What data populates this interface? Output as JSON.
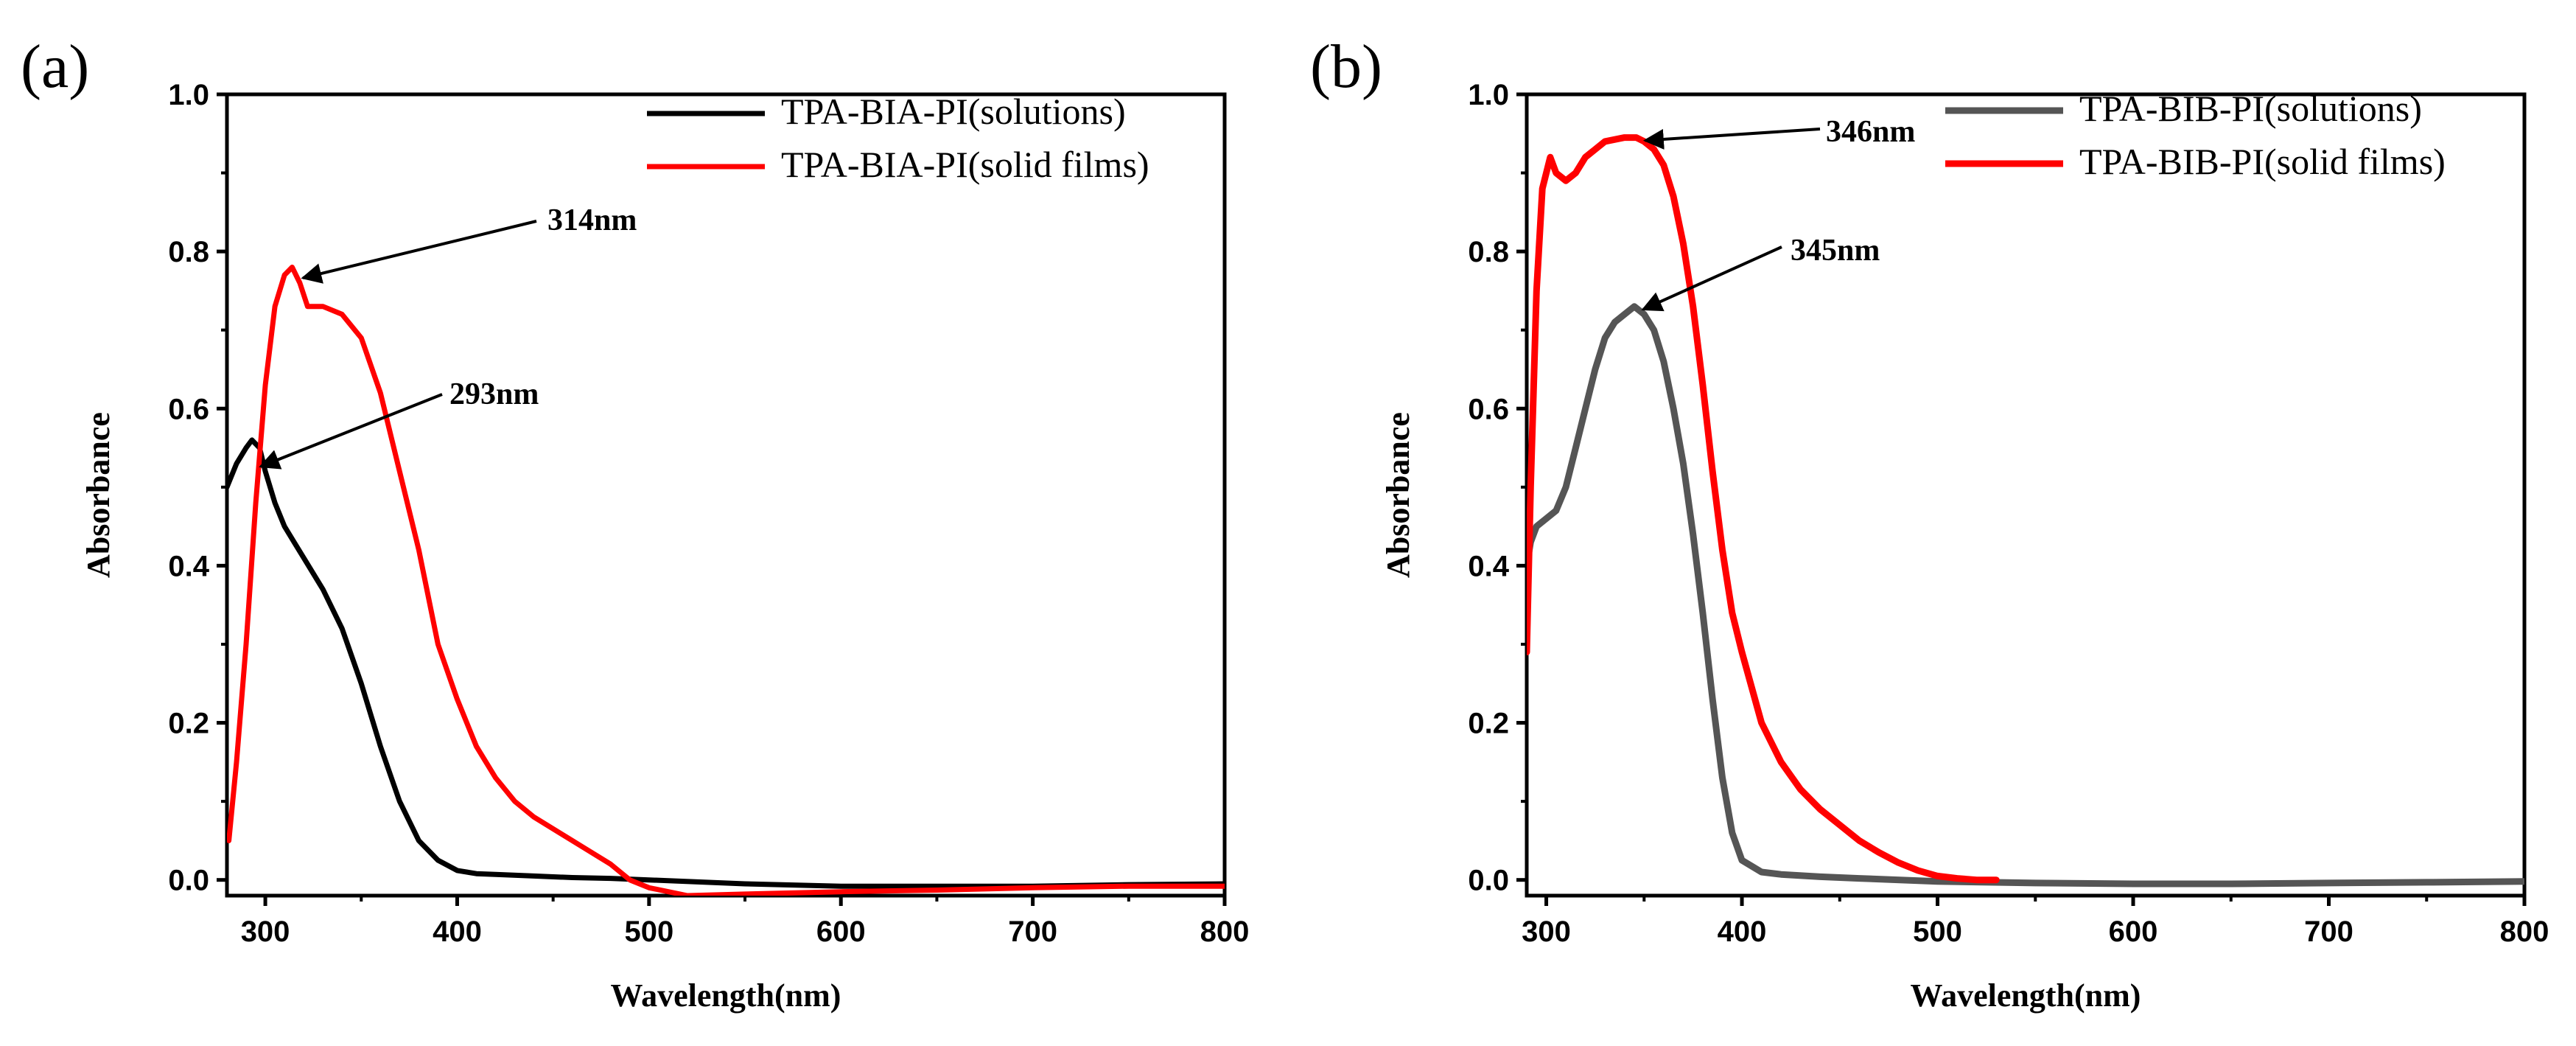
{
  "figure": {
    "panels": [
      "(a)",
      "(b)"
    ]
  },
  "chart_data": [
    {
      "type": "line",
      "panel": "(a)",
      "xlabel": "Wavelength(nm)",
      "ylabel": "Absorbance",
      "xlim": [
        280,
        800
      ],
      "ylim": [
        -0.02,
        1.0
      ],
      "xticks": [
        300,
        400,
        500,
        600,
        700,
        800
      ],
      "yticks": [
        0.0,
        0.2,
        0.4,
        0.6,
        0.8,
        1.0
      ],
      "ytick_labels": [
        "0.0",
        "0.2",
        "0.4",
        "0.6",
        "0.8",
        "1.0"
      ],
      "grid": false,
      "legend": "top-right",
      "series": [
        {
          "name": "TPA-BIA-PI(solutions)",
          "color": "#000000",
          "x": [
            280,
            285,
            290,
            293,
            297,
            300,
            305,
            310,
            315,
            320,
            330,
            340,
            350,
            360,
            370,
            380,
            390,
            400,
            410,
            420,
            440,
            460,
            480,
            500,
            550,
            600,
            650,
            700,
            750,
            800
          ],
          "y": [
            0.5,
            0.53,
            0.55,
            0.56,
            0.55,
            0.52,
            0.48,
            0.45,
            0.43,
            0.41,
            0.37,
            0.32,
            0.25,
            0.17,
            0.1,
            0.05,
            0.025,
            0.012,
            0.008,
            0.007,
            0.005,
            0.003,
            0.002,
            0.0,
            -0.005,
            -0.008,
            -0.008,
            -0.008,
            -0.006,
            -0.005
          ]
        },
        {
          "name": "TPA-BIA-PI(solid films)",
          "color": "#ff0000",
          "x": [
            281,
            285,
            290,
            295,
            300,
            305,
            310,
            314,
            318,
            322,
            326,
            330,
            340,
            350,
            360,
            370,
            380,
            390,
            400,
            410,
            420,
            430,
            440,
            460,
            480,
            490,
            500,
            520,
            550,
            600,
            650,
            700,
            750,
            800
          ],
          "y": [
            0.05,
            0.15,
            0.3,
            0.48,
            0.63,
            0.73,
            0.77,
            0.78,
            0.76,
            0.73,
            0.73,
            0.73,
            0.72,
            0.69,
            0.62,
            0.52,
            0.42,
            0.3,
            0.23,
            0.17,
            0.13,
            0.1,
            0.08,
            0.05,
            0.02,
            0.0,
            -0.01,
            -0.02,
            -0.018,
            -0.015,
            -0.013,
            -0.01,
            -0.008,
            -0.008
          ]
        }
      ],
      "annotations": [
        {
          "text": "314nm",
          "x": 315,
          "y": 0.77
        },
        {
          "text": "293nm",
          "x": 293,
          "y": 0.53
        }
      ]
    },
    {
      "type": "line",
      "panel": "(b)",
      "xlabel": "Wavelength(nm)",
      "ylabel": "Absorbance",
      "xlim": [
        290,
        800
      ],
      "ylim": [
        -0.02,
        1.0
      ],
      "xticks": [
        300,
        400,
        500,
        600,
        700,
        800
      ],
      "yticks": [
        0.0,
        0.2,
        0.4,
        0.6,
        0.8,
        1.0
      ],
      "ytick_labels": [
        "0.0",
        "0.2",
        "0.4",
        "0.6",
        "0.8",
        "1.0"
      ],
      "grid": false,
      "legend": "top-right",
      "series": [
        {
          "name": "TPA-BIB-PI(solutions)",
          "color": "#555555",
          "x": [
            290,
            292,
            295,
            300,
            305,
            310,
            315,
            320,
            325,
            330,
            335,
            340,
            345,
            350,
            355,
            360,
            365,
            370,
            375,
            380,
            385,
            390,
            395,
            400,
            410,
            420,
            440,
            460,
            500,
            550,
            600,
            650,
            700,
            750,
            800
          ],
          "y": [
            0.4,
            0.43,
            0.45,
            0.46,
            0.47,
            0.5,
            0.55,
            0.6,
            0.65,
            0.69,
            0.71,
            0.72,
            0.73,
            0.72,
            0.7,
            0.66,
            0.6,
            0.53,
            0.44,
            0.34,
            0.23,
            0.13,
            0.06,
            0.025,
            0.01,
            0.007,
            0.004,
            0.002,
            -0.002,
            -0.004,
            -0.005,
            -0.005,
            -0.004,
            -0.003,
            -0.002
          ]
        },
        {
          "name": "TPA-BIB-PI(solid films)",
          "color": "#ff0000",
          "x": [
            290,
            292,
            295,
            298,
            302,
            305,
            310,
            315,
            320,
            330,
            340,
            346,
            350,
            355,
            360,
            365,
            370,
            375,
            380,
            385,
            390,
            395,
            400,
            410,
            420,
            430,
            440,
            450,
            460,
            470,
            480,
            490,
            500,
            510,
            520,
            530
          ],
          "y": [
            0.29,
            0.5,
            0.75,
            0.88,
            0.92,
            0.9,
            0.89,
            0.9,
            0.92,
            0.94,
            0.945,
            0.945,
            0.94,
            0.93,
            0.91,
            0.87,
            0.81,
            0.73,
            0.63,
            0.52,
            0.42,
            0.34,
            0.29,
            0.2,
            0.15,
            0.115,
            0.09,
            0.07,
            0.05,
            0.035,
            0.022,
            0.012,
            0.005,
            0.002,
            0.0,
            0.0
          ]
        }
      ],
      "annotations": [
        {
          "text": "346nm",
          "x": 346,
          "y": 0.945
        },
        {
          "text": "345nm",
          "x": 345,
          "y": 0.73
        }
      ]
    }
  ]
}
